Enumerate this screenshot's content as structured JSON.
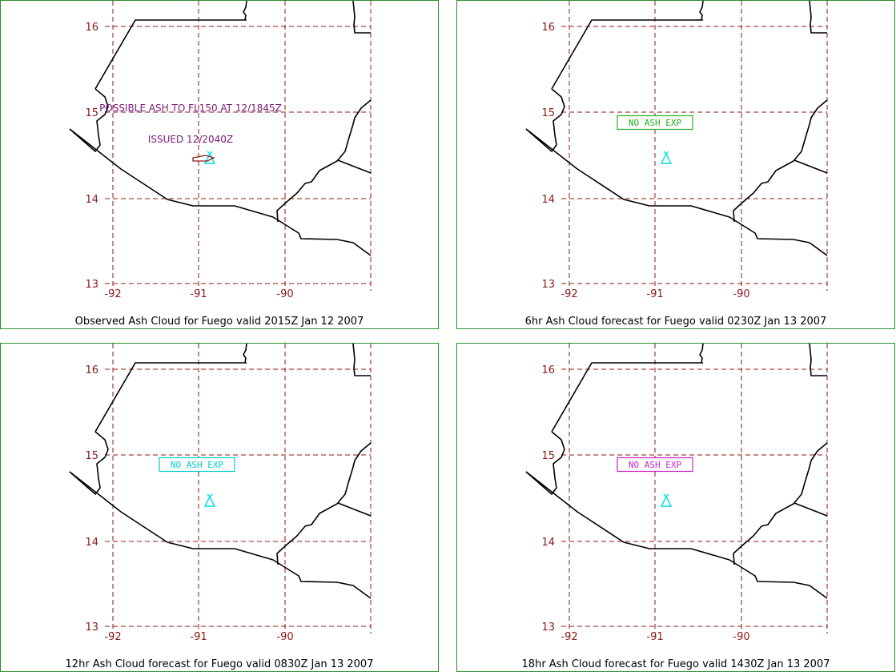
{
  "panels": [
    {
      "caption": "Observed Ash Cloud for Fuego valid 2015Z Jan 12 2007",
      "annotations": [
        "POSSIBLE ASH TO FL150 AT 12/1845Z",
        "ISSUED 12/2040Z"
      ],
      "status_label": "",
      "status_color": "#7a1a7a"
    },
    {
      "caption": "6hr Ash Cloud forecast for Fuego valid 0230Z Jan 13 2007",
      "annotations": [],
      "status_label": "NO ASH EXP",
      "status_color": "#22b022"
    },
    {
      "caption": "12hr Ash Cloud forecast for Fuego valid 0830Z Jan 13 2007",
      "annotations": [],
      "status_label": "NO ASH EXP",
      "status_color": "#00cccc"
    },
    {
      "caption": "18hr Ash Cloud forecast for Fuego valid 1430Z Jan 13 2007",
      "annotations": [],
      "status_label": "NO ASH EXP",
      "status_color": "#cc22cc"
    }
  ],
  "map": {
    "lon_ticks": [
      "-92",
      "-91",
      "-90"
    ],
    "lat_ticks": [
      "16",
      "15",
      "14",
      "13"
    ],
    "grid_color": "#8b1a1a",
    "coast_color": "#000000",
    "volcano_color": "#00e0e0",
    "volcano_icon": "volcano-triangle-icon"
  }
}
